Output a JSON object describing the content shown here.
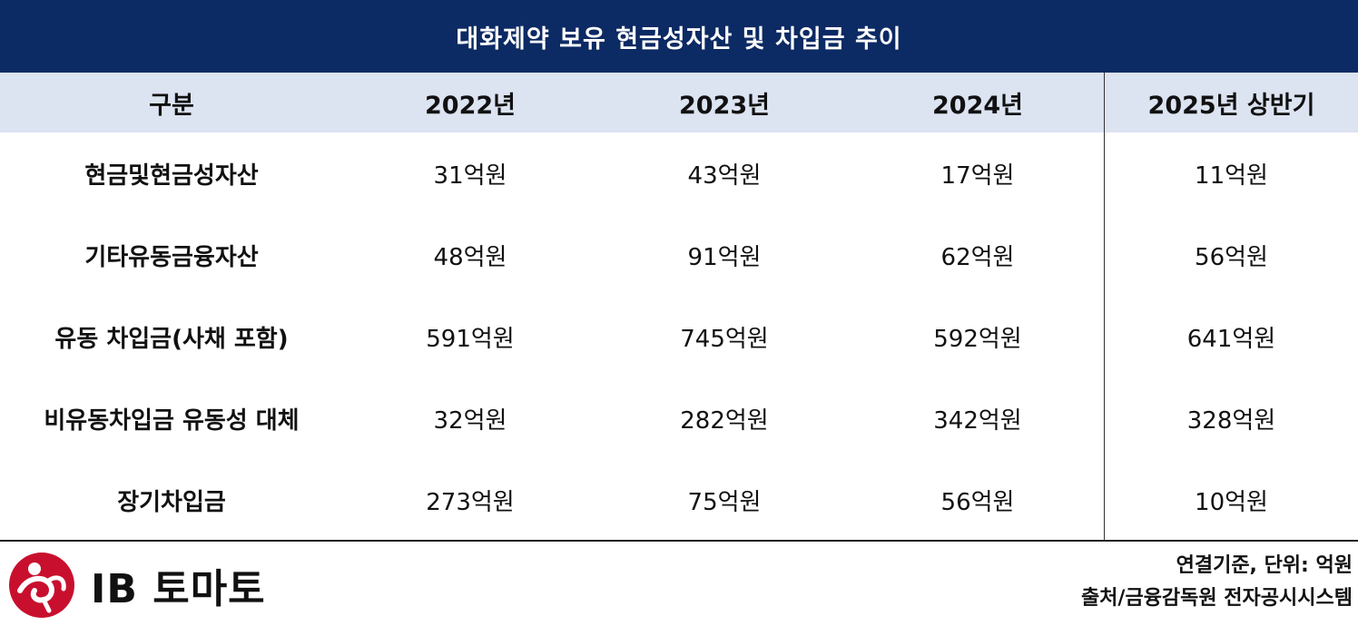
{
  "title": "대화제약 보유 현금성자산 및 차입금 추이",
  "table": {
    "headers": [
      "구분",
      "2022년",
      "2023년",
      "2024년",
      "2025년 상반기"
    ],
    "rows": [
      {
        "label": "현금및현금성자산",
        "values": [
          "31억원",
          "43억원",
          "17억원",
          "11억원"
        ]
      },
      {
        "label": "기타유동금융자산",
        "values": [
          "48억원",
          "91억원",
          "62억원",
          "56억원"
        ]
      },
      {
        "label": "유동 차입금(사채 포함)",
        "values": [
          "591억원",
          "745억원",
          "592억원",
          "641억원"
        ]
      },
      {
        "label": "비유동차입금 유동성 대체",
        "values": [
          "32억원",
          "282억원",
          "342억원",
          "328억원"
        ]
      },
      {
        "label": "장기차입금",
        "values": [
          "273억원",
          "75억원",
          "56억원",
          "10억원"
        ]
      }
    ]
  },
  "footer": {
    "logo_text": "IB 토마토",
    "logo_icon": "ib-tomato-logo-icon",
    "note_basis": "연결기준, 단위: 억원",
    "note_source": "출처/금융감독원 전자공시시스템"
  },
  "colors": {
    "title_bg": "#0c2a63",
    "header_bg": "#dce3f1",
    "logo_red": "#c8102e"
  }
}
